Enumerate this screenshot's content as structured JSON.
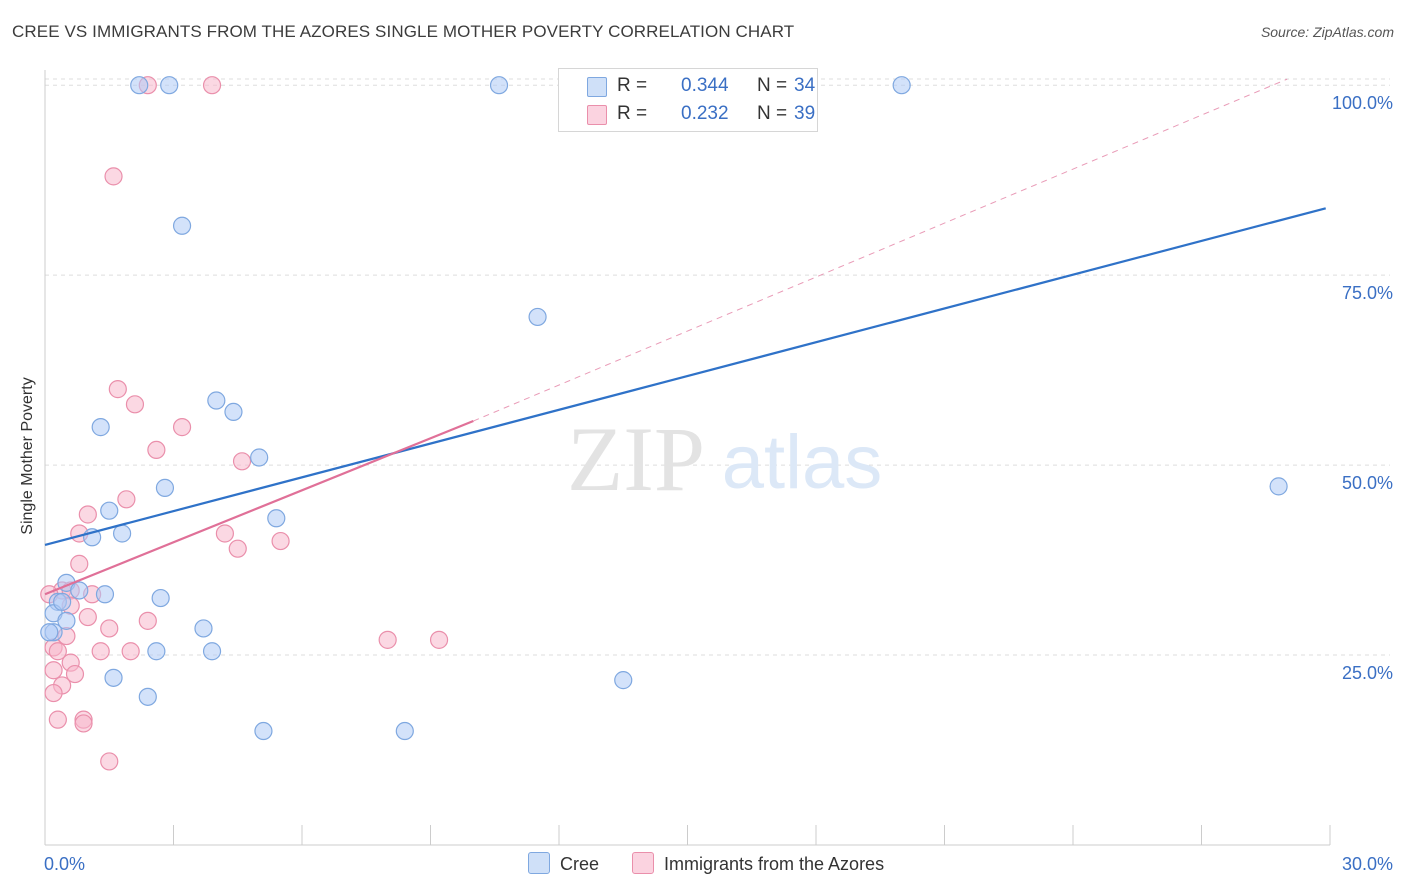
{
  "header": {
    "title": "CREE VS IMMIGRANTS FROM THE AZORES SINGLE MOTHER POVERTY CORRELATION CHART",
    "source": "Source: ZipAtlas.com"
  },
  "watermark": {
    "zip": "ZIP",
    "atlas": "atlas"
  },
  "colors": {
    "cree_fill": "#aecbf5",
    "cree_stroke": "#7fa8e0",
    "cree_line": "#2f72c8",
    "azores_fill": "#f7b8cc",
    "azores_stroke": "#ea8fab",
    "azores_line": "#e07098",
    "grid": "#dddddd",
    "tick_label": "#3a6fc4"
  },
  "legend": {
    "rows": [
      {
        "label": "R = ",
        "r": "0.344",
        "n_label": "N = ",
        "n": "34"
      },
      {
        "label": "R = ",
        "r": "0.232",
        "n_label": "N = ",
        "n": "39"
      }
    ]
  },
  "chart_data": {
    "type": "scatter",
    "title": "CREE VS IMMIGRANTS FROM THE AZORES SINGLE MOTHER POVERTY CORRELATION CHART",
    "xlabel": "",
    "ylabel": "Single Mother Poverty",
    "xlim": [
      0,
      30
    ],
    "ylim": [
      0,
      102
    ],
    "x_ticks": [
      0,
      3,
      6,
      9,
      12,
      15,
      18,
      21,
      24,
      27,
      30
    ],
    "x_tick_labels": [
      {
        "value": 0,
        "label": "0.0%"
      },
      {
        "value": 30,
        "label": "30.0%"
      }
    ],
    "y_ticks": [
      {
        "value": 25,
        "label": "25.0%"
      },
      {
        "value": 50,
        "label": "50.0%"
      },
      {
        "value": 75,
        "label": "75.0%"
      },
      {
        "value": 100,
        "label": "100.0%"
      }
    ],
    "grid": true,
    "series": [
      {
        "name": "Cree",
        "r": 0.344,
        "n": 34,
        "trend": {
          "x": [
            0,
            29.9
          ],
          "y": [
            39.5,
            83.8
          ],
          "dashed_extension": null
        },
        "points": [
          [
            2.2,
            100
          ],
          [
            2.9,
            100
          ],
          [
            10.6,
            100
          ],
          [
            20.0,
            100
          ],
          [
            3.2,
            81.5
          ],
          [
            11.5,
            69.5
          ],
          [
            4.4,
            57
          ],
          [
            4.0,
            58.5
          ],
          [
            1.3,
            55
          ],
          [
            5.0,
            51
          ],
          [
            2.8,
            47
          ],
          [
            1.5,
            44
          ],
          [
            1.8,
            41
          ],
          [
            1.1,
            40.5
          ],
          [
            5.4,
            43
          ],
          [
            28.8,
            47.2
          ],
          [
            0.3,
            32
          ],
          [
            0.5,
            34.5
          ],
          [
            0.8,
            33.5
          ],
          [
            1.4,
            33
          ],
          [
            2.7,
            32.5
          ],
          [
            0.2,
            30.5
          ],
          [
            0.5,
            29.5
          ],
          [
            0.2,
            28
          ],
          [
            3.7,
            28.5
          ],
          [
            2.6,
            25.5
          ],
          [
            3.9,
            25.5
          ],
          [
            1.6,
            22
          ],
          [
            13.5,
            21.7
          ],
          [
            2.4,
            19.5
          ],
          [
            5.1,
            15
          ],
          [
            8.4,
            15
          ],
          [
            0.4,
            32
          ],
          [
            0.1,
            28
          ]
        ]
      },
      {
        "name": "Immigrants from the Azores",
        "r": 0.232,
        "n": 39,
        "trend": {
          "x": [
            0,
            10.0
          ],
          "y": [
            33.0,
            55.8
          ],
          "dashed_extension": {
            "x": [
              10.0,
              29.0
            ],
            "y": [
              55.8,
              100.8
            ]
          }
        },
        "points": [
          [
            2.4,
            100
          ],
          [
            3.9,
            100
          ],
          [
            1.6,
            88
          ],
          [
            1.7,
            60
          ],
          [
            2.1,
            58
          ],
          [
            3.2,
            55
          ],
          [
            2.6,
            52
          ],
          [
            4.6,
            50.5
          ],
          [
            1.9,
            45.5
          ],
          [
            1.0,
            43.5
          ],
          [
            0.8,
            41
          ],
          [
            4.2,
            41
          ],
          [
            4.5,
            39
          ],
          [
            5.5,
            40
          ],
          [
            0.8,
            37
          ],
          [
            0.4,
            33.5
          ],
          [
            0.6,
            33.5
          ],
          [
            1.1,
            33
          ],
          [
            0.6,
            31.5
          ],
          [
            1.0,
            30
          ],
          [
            2.4,
            29.5
          ],
          [
            1.5,
            28.5
          ],
          [
            0.5,
            27.5
          ],
          [
            8.0,
            27
          ],
          [
            9.2,
            27
          ],
          [
            0.2,
            26
          ],
          [
            0.3,
            25.5
          ],
          [
            1.3,
            25.5
          ],
          [
            2.0,
            25.5
          ],
          [
            0.6,
            24
          ],
          [
            0.2,
            23
          ],
          [
            0.7,
            22.5
          ],
          [
            0.4,
            21
          ],
          [
            0.2,
            20
          ],
          [
            0.3,
            16.5
          ],
          [
            0.9,
            16.5
          ],
          [
            0.9,
            16
          ],
          [
            1.5,
            11
          ],
          [
            0.1,
            33
          ]
        ]
      }
    ]
  },
  "bottom_legend": [
    {
      "label": "Cree"
    },
    {
      "label": "Immigrants from the Azores"
    }
  ]
}
